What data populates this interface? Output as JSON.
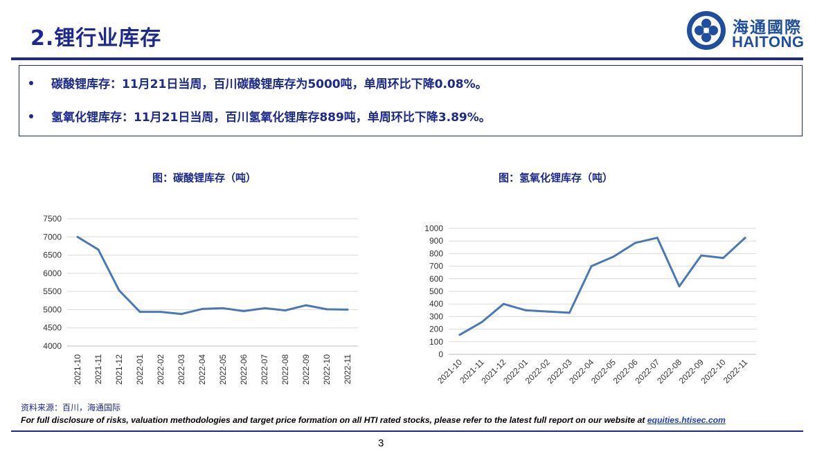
{
  "header": {
    "title": "2.锂行业库存",
    "logo_cn": "海通國際",
    "logo_en": "HAITONG"
  },
  "summary": {
    "bullets": [
      "碳酸锂库存：11月21日当周，百川碳酸锂库存为5000吨，单周环比下降0.08%。",
      "氢氧化锂库存：11月21日当周，百川氢氧化锂库存889吨，单周环比下降3.89%。"
    ]
  },
  "chart_data": [
    {
      "type": "line",
      "title": "图：碳酸锂库存（吨）",
      "categories": [
        "2021-10",
        "2021-11",
        "2021-12",
        "2022-01",
        "2022-02",
        "2022-03",
        "2022-04",
        "2022-05",
        "2022-06",
        "2022-07",
        "2022-08",
        "2022-09",
        "2022-10",
        "2022-11"
      ],
      "values": [
        7000,
        6650,
        5530,
        4940,
        4940,
        4880,
        5020,
        5040,
        4960,
        5040,
        4980,
        5120,
        5010,
        5000
      ],
      "ylim": [
        4000,
        7500
      ],
      "yticks": [
        "4000",
        "4500",
        "5000",
        "5500",
        "6000",
        "6500",
        "7000",
        "7500"
      ],
      "grid": true,
      "color": "#4a78b5"
    },
    {
      "type": "line",
      "title": "图：氢氧化锂库存（吨）",
      "categories": [
        "2021-10",
        "2021-11",
        "2021-12",
        "2022-01",
        "2022-02",
        "2022-03",
        "2022-04",
        "2022-05",
        "2022-06",
        "2022-07",
        "2022-08",
        "2022-09",
        "2022-10",
        "2022-11"
      ],
      "values": [
        155,
        255,
        400,
        350,
        340,
        330,
        700,
        775,
        885,
        925,
        540,
        785,
        765,
        925
      ],
      "ylim": [
        0,
        1000
      ],
      "yticks": [
        "0",
        "100",
        "200",
        "300",
        "400",
        "500",
        "600",
        "700",
        "800",
        "900",
        "1000"
      ],
      "grid": true,
      "color": "#4a78b5"
    }
  ],
  "footer": {
    "source": "资料来源：百川，海通国际",
    "disclosure": "For full disclosure of risks, valuation methodologies and target price formation on all HTI rated stocks, please refer to the latest full report on our website at",
    "link": "equities.htisec.com",
    "page_number": "3"
  }
}
